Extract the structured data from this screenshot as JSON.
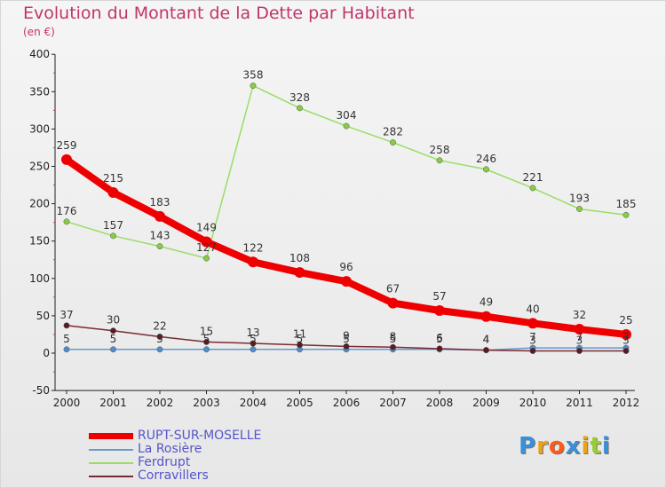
{
  "title": "Evolution du Montant de la Dette par Habitant",
  "subtitle": "(en €)",
  "logo": "Proxiti",
  "colors": {
    "title": "#c0356b",
    "rupt": "#ee0000",
    "rosiere": "#6699cc",
    "ferdrupt": "#99dd66",
    "corravillers": "#7a2a32",
    "legend_text": "#5555cc"
  },
  "chart_data": {
    "type": "line",
    "title": "Evolution du Montant de la Dette par Habitant",
    "ylabel": "(en €)",
    "x": [
      "2000",
      "2001",
      "2002",
      "2003",
      "2004",
      "2005",
      "2006",
      "2007",
      "2008",
      "2009",
      "2010",
      "2011",
      "2012"
    ],
    "ylim": [
      -50,
      400
    ],
    "yticks": [
      "-50",
      "0",
      "50",
      "100",
      "150",
      "200",
      "250",
      "300",
      "350",
      "400"
    ],
    "grid": false,
    "legend_position": "bottom-left",
    "series": [
      {
        "name": "RUPT-SUR-MOSELLE",
        "values": [
          259,
          215,
          183,
          149,
          122,
          108,
          96,
          67,
          57,
          49,
          40,
          32,
          25
        ]
      },
      {
        "name": "La Rosière",
        "values": [
          5,
          5,
          5,
          5,
          5,
          5,
          5,
          5,
          5,
          4,
          7,
          7,
          7
        ]
      },
      {
        "name": "Ferdrupt",
        "values": [
          176,
          157,
          143,
          127,
          358,
          328,
          304,
          282,
          258,
          246,
          221,
          193,
          185
        ]
      },
      {
        "name": "Corravillers",
        "values": [
          37,
          30,
          22,
          15,
          13,
          11,
          9,
          8,
          6,
          4,
          3,
          3,
          3
        ]
      }
    ],
    "data_labels": [
      {
        "series": "RUPT-SUR-MOSELLE",
        "labels": [
          "259",
          "215",
          "183",
          "149",
          "122",
          "108",
          "96",
          "67",
          "57",
          "49",
          "40",
          "32",
          "25"
        ]
      },
      {
        "series": "La Rosière",
        "labels": [
          "5",
          "5",
          "5",
          "5",
          "5",
          "5",
          "5",
          "5",
          "5",
          "4",
          "7",
          "7",
          "7"
        ]
      },
      {
        "series": "Ferdrupt",
        "labels": [
          "176",
          "157",
          "143",
          "127",
          "358",
          "328",
          "304",
          "282",
          "258",
          "246",
          "221",
          "193",
          "185"
        ]
      },
      {
        "series": "Corravillers",
        "labels": [
          "37",
          "30",
          "22",
          "15",
          "13",
          "11",
          "9",
          "8",
          "6",
          "4",
          "3",
          "3",
          "3"
        ]
      }
    ]
  }
}
